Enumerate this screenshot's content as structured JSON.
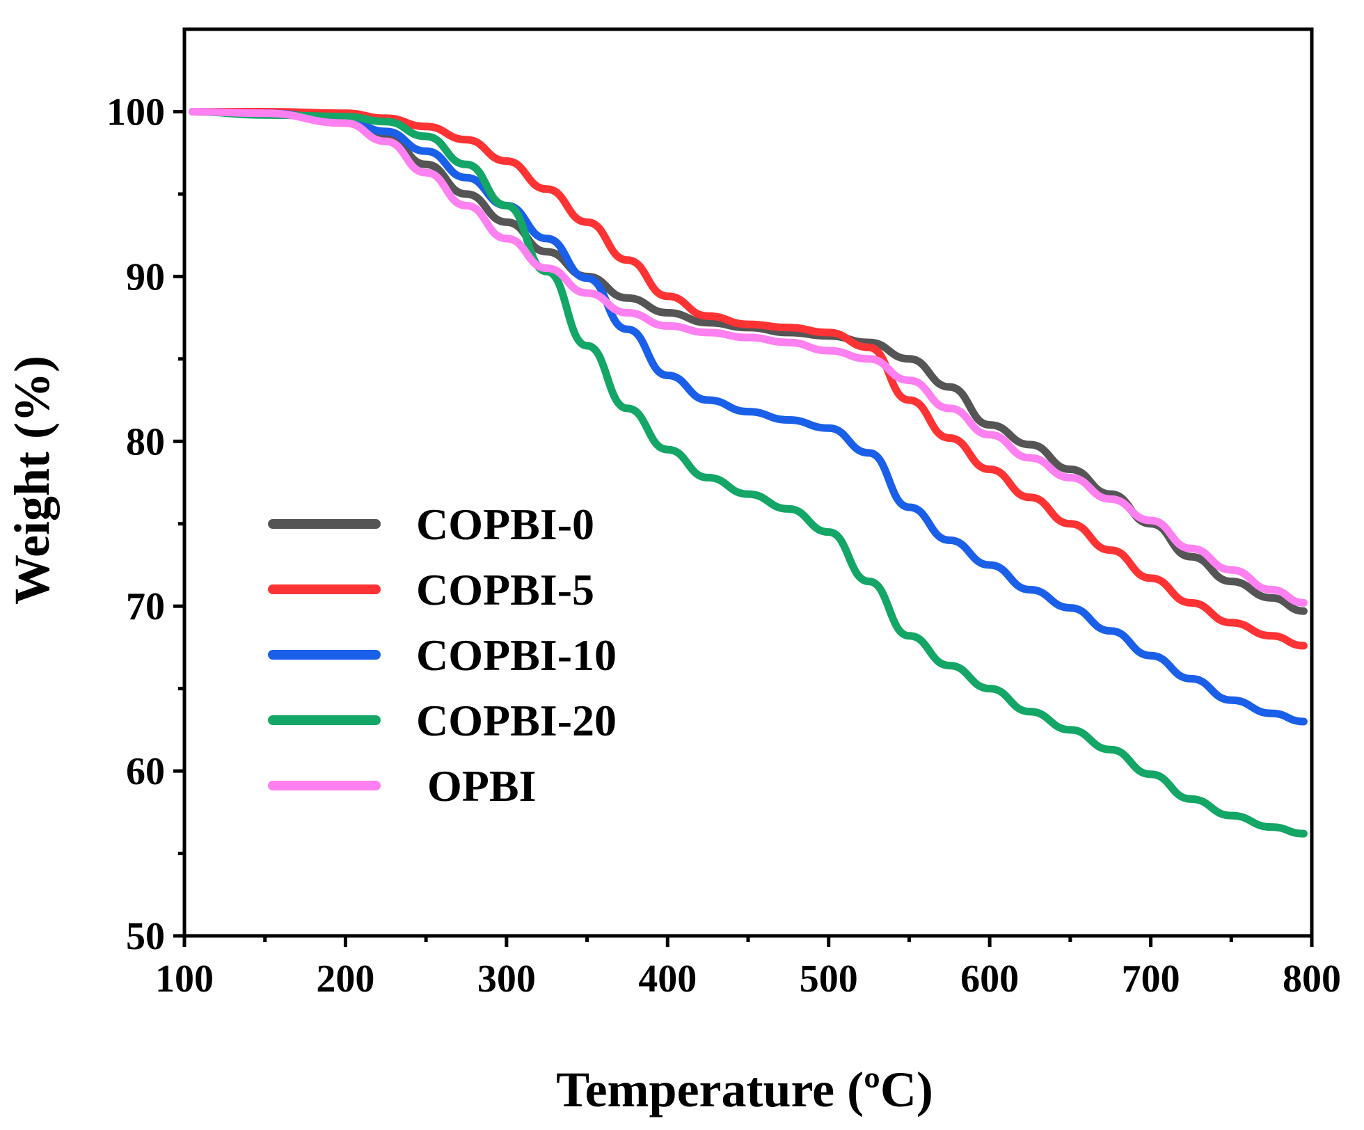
{
  "chart_data": {
    "type": "line",
    "title": "",
    "xlabel": "Temperature (ºC)",
    "ylabel": "Weight (%)",
    "xlim": [
      100,
      800
    ],
    "ylim": [
      50,
      105
    ],
    "xticks": [
      100,
      200,
      300,
      400,
      500,
      600,
      700,
      800
    ],
    "yticks": [
      50,
      60,
      70,
      80,
      90,
      100
    ],
    "grid": false,
    "legend_position": "center-left",
    "series": [
      {
        "name": "COPBI-0",
        "color": "#555555",
        "x": [
          105,
          150,
          200,
          225,
          250,
          275,
          300,
          325,
          350,
          375,
          400,
          425,
          450,
          475,
          500,
          525,
          550,
          575,
          600,
          625,
          650,
          675,
          700,
          725,
          750,
          775,
          795
        ],
        "y": [
          100,
          99.9,
          99.5,
          98.6,
          96.8,
          95.0,
          93.3,
          91.5,
          90.0,
          88.7,
          87.8,
          87.2,
          86.9,
          86.6,
          86.4,
          86.0,
          85.0,
          83.3,
          81.0,
          79.8,
          78.3,
          76.8,
          75.0,
          73.0,
          71.5,
          70.5,
          69.7
        ]
      },
      {
        "name": "COPBI-5",
        "color": "#ff3333",
        "x": [
          105,
          150,
          200,
          225,
          250,
          275,
          300,
          325,
          350,
          375,
          400,
          425,
          450,
          475,
          500,
          525,
          550,
          575,
          600,
          625,
          650,
          675,
          700,
          725,
          750,
          775,
          795
        ],
        "y": [
          100,
          100,
          99.9,
          99.6,
          99.1,
          98.3,
          97.0,
          95.3,
          93.3,
          91.0,
          88.8,
          87.6,
          87.1,
          86.9,
          86.6,
          85.7,
          82.5,
          80.2,
          78.3,
          76.6,
          75.0,
          73.4,
          71.7,
          70.2,
          69.0,
          68.2,
          67.6
        ]
      },
      {
        "name": "COPBI-10",
        "color": "#1a5fe8",
        "x": [
          105,
          150,
          200,
          225,
          250,
          275,
          300,
          325,
          350,
          375,
          400,
          425,
          450,
          475,
          500,
          525,
          550,
          575,
          600,
          625,
          650,
          675,
          700,
          725,
          750,
          775,
          795
        ],
        "y": [
          100,
          99.9,
          99.5,
          98.8,
          97.6,
          96.0,
          94.3,
          92.3,
          89.9,
          86.8,
          84.0,
          82.5,
          81.8,
          81.3,
          80.8,
          79.3,
          76.0,
          74.0,
          72.5,
          71.0,
          69.9,
          68.5,
          67.0,
          65.6,
          64.3,
          63.5,
          63.0
        ]
      },
      {
        "name": "COPBI-20",
        "color": "#13a666",
        "x": [
          105,
          150,
          200,
          225,
          250,
          275,
          300,
          325,
          350,
          375,
          400,
          425,
          450,
          475,
          500,
          525,
          550,
          575,
          600,
          625,
          650,
          675,
          700,
          725,
          750,
          775,
          795
        ],
        "y": [
          100,
          99.8,
          99.7,
          99.4,
          98.5,
          96.8,
          94.3,
          90.3,
          85.8,
          82.0,
          79.5,
          77.8,
          76.8,
          75.9,
          74.5,
          71.5,
          68.2,
          66.4,
          65.0,
          63.6,
          62.5,
          61.3,
          59.8,
          58.3,
          57.3,
          56.6,
          56.2
        ]
      },
      {
        "name": "OPBI",
        "color": "#ff80f0",
        "x": [
          105,
          150,
          200,
          225,
          250,
          275,
          300,
          325,
          350,
          375,
          400,
          425,
          450,
          475,
          500,
          525,
          550,
          575,
          600,
          625,
          650,
          675,
          700,
          725,
          750,
          775,
          795
        ],
        "y": [
          100,
          99.9,
          99.3,
          98.2,
          96.3,
          94.3,
          92.3,
          90.5,
          89.0,
          87.8,
          87.0,
          86.6,
          86.3,
          86.0,
          85.5,
          85.0,
          83.7,
          82.0,
          80.4,
          79.0,
          77.8,
          76.5,
          75.2,
          73.5,
          72.2,
          71.0,
          70.2
        ]
      }
    ]
  }
}
